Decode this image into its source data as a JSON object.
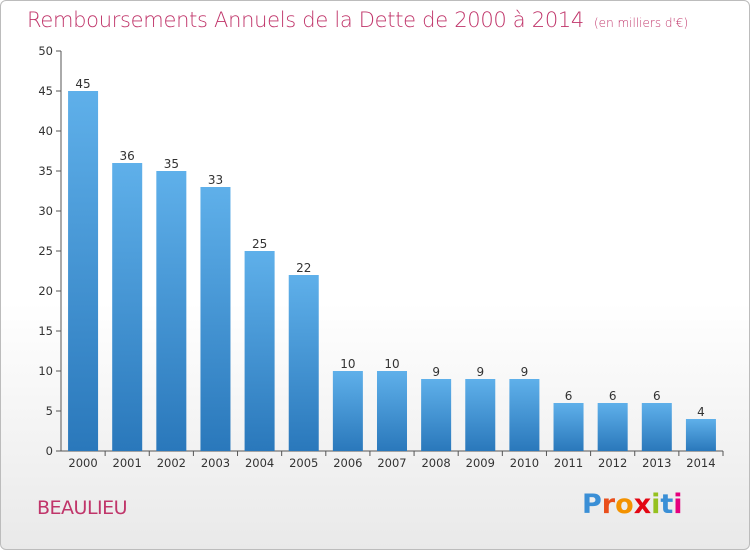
{
  "chart_data": {
    "type": "bar",
    "title": "Remboursements Annuels de la Dette de 2000 à 2014",
    "subtitle": "(en milliers d'€)",
    "categories": [
      "2000",
      "2001",
      "2002",
      "2003",
      "2004",
      "2005",
      "2006",
      "2007",
      "2008",
      "2009",
      "2010",
      "2011",
      "2012",
      "2013",
      "2014"
    ],
    "values": [
      45,
      36,
      35,
      33,
      25,
      22,
      10,
      10,
      9,
      9,
      9,
      6,
      6,
      6,
      4
    ],
    "ylim": [
      0,
      50
    ],
    "yticks": [
      0,
      5,
      10,
      15,
      20,
      25,
      30,
      35,
      40,
      45,
      50
    ],
    "xlabel": "",
    "ylabel": "",
    "grid": false,
    "legend": "none"
  },
  "footer": {
    "place": "BEAULIEU",
    "brand_letters": [
      "P",
      "r",
      "o",
      "x",
      "i",
      "t",
      "i"
    ]
  },
  "colors": {
    "title": "#c0356a",
    "bar_top": "#5fb0ea",
    "bar_bottom": "#2a78bb",
    "axis": "#555555",
    "brand": [
      "#3a8fd6",
      "#e94e1b",
      "#f39200",
      "#e30613",
      "#95c11f",
      "#3a8fd6",
      "#e6007e"
    ]
  }
}
